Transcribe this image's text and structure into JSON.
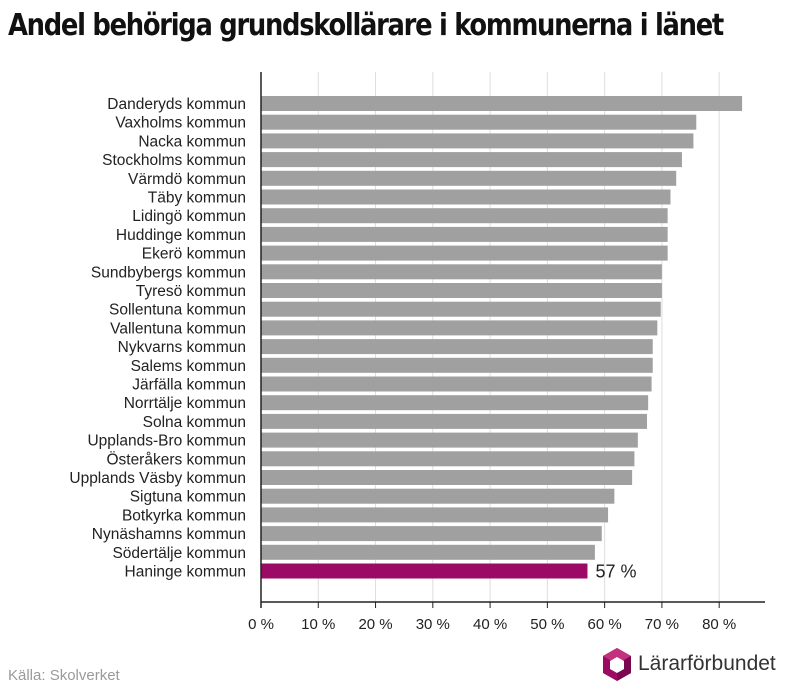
{
  "title": "Andel behöriga grundskollärare i kommunerna i länet",
  "source": "Källa: Skolverket",
  "brand": {
    "name": "Lärarförbundet",
    "icon": "hexagon-logo-icon",
    "color": "#9b0a64"
  },
  "colors": {
    "bar": "#a0a0a0",
    "highlight": "#9b0a64",
    "grid": "#dddddd",
    "axis": "#222222"
  },
  "chart_data": {
    "type": "bar",
    "orientation": "horizontal",
    "categories": [
      "Danderyds kommun",
      "Vaxholms kommun",
      "Nacka kommun",
      "Stockholms kommun",
      "Värmdö kommun",
      "Täby kommun",
      "Lidingö kommun",
      "Huddinge kommun",
      "Ekerö kommun",
      "Sundbybergs kommun",
      "Tyresö kommun",
      "Sollentuna kommun",
      "Vallentuna kommun",
      "Nykvarns kommun",
      "Salems kommun",
      "Järfälla kommun",
      "Norrtälje kommun",
      "Solna kommun",
      "Upplands-Bro kommun",
      "Österåkers kommun",
      "Upplands Väsby kommun",
      "Sigtuna kommun",
      "Botkyrka kommun",
      "Nynäshamns kommun",
      "Södertälje kommun",
      "Haninge kommun"
    ],
    "values": [
      84,
      76,
      75.5,
      73.5,
      72.5,
      71.5,
      71,
      71,
      71,
      70,
      70,
      69.8,
      69.2,
      68.4,
      68.4,
      68.2,
      67.6,
      67.4,
      65.8,
      65.2,
      64.8,
      61.7,
      60.6,
      59.5,
      58.3,
      57
    ],
    "highlight": {
      "category": "Haninge kommun",
      "label": "57 %"
    },
    "xlim": [
      0,
      88
    ],
    "xticks": [
      0,
      10,
      20,
      30,
      40,
      50,
      60,
      70,
      80
    ],
    "xtick_labels": [
      "0 %",
      "10 %",
      "20 %",
      "30 %",
      "40 %",
      "50 %",
      "60 %",
      "70 %",
      "80 %"
    ],
    "xlabel": "",
    "ylabel": "",
    "grid": "vertical",
    "legend": "none"
  }
}
